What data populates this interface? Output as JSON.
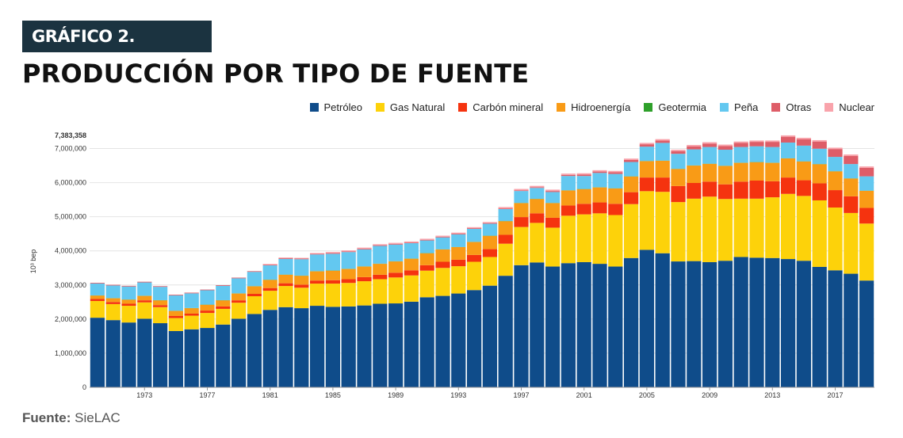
{
  "header": {
    "badge": "GRÁFICO 2.",
    "title": "PRODUCCIÓN POR TIPO DE FUENTE"
  },
  "source": {
    "label": "Fuente:",
    "value": "SieLAC"
  },
  "colors": {
    "Petróleo": "#0f4c8a",
    "Gas Natural": "#fdd20a",
    "Carbón mineral": "#f5330f",
    "Hidroenergía": "#f99b16",
    "Geotermia": "#2ea02a",
    "Peña": "#63c8f0",
    "Otras": "#de5d68",
    "Nuclear": "#f9a3ab"
  },
  "chart_data": {
    "type": "bar",
    "stacked": true,
    "ylabel": "10³ bep",
    "ylim": [
      0,
      7383358
    ],
    "y_max_label": "7,383,358",
    "y_ticks": [
      0,
      1000000,
      2000000,
      3000000,
      4000000,
      5000000,
      6000000,
      7000000
    ],
    "y_tick_labels": [
      "0",
      "1,000,000",
      "2,000,000",
      "3,000,000",
      "4,000,000",
      "5,000,000",
      "6,000,000",
      "7,000,000"
    ],
    "grid": true,
    "legend_position": "top-right",
    "x_tick_labels": [
      "1973",
      "1977",
      "1981",
      "1985",
      "1989",
      "1993",
      "1997",
      "2001",
      "2005",
      "2009",
      "2013",
      "2017"
    ],
    "categories": [
      "1970",
      "1971",
      "1972",
      "1973",
      "1974",
      "1975",
      "1976",
      "1977",
      "1978",
      "1979",
      "1980",
      "1981",
      "1982",
      "1983",
      "1984",
      "1985",
      "1986",
      "1987",
      "1988",
      "1989",
      "1990",
      "1991",
      "1992",
      "1993",
      "1994",
      "1995",
      "1996",
      "1997",
      "1998",
      "1999",
      "2000",
      "2001",
      "2002",
      "2003",
      "2004",
      "2005",
      "2006",
      "2007",
      "2008",
      "2009",
      "2010",
      "2011",
      "2012",
      "2013",
      "2014",
      "2015",
      "2016",
      "2017",
      "2018",
      "2019"
    ],
    "series": [
      {
        "name": "Petróleo",
        "values": [
          2040000,
          1970000,
          1900000,
          2010000,
          1880000,
          1650000,
          1700000,
          1740000,
          1840000,
          2010000,
          2150000,
          2270000,
          2350000,
          2320000,
          2390000,
          2360000,
          2370000,
          2400000,
          2450000,
          2460000,
          2510000,
          2640000,
          2680000,
          2750000,
          2850000,
          2980000,
          3270000,
          3580000,
          3660000,
          3540000,
          3640000,
          3670000,
          3620000,
          3540000,
          3790000,
          4030000,
          3930000,
          3690000,
          3700000,
          3670000,
          3710000,
          3820000,
          3800000,
          3790000,
          3760000,
          3710000,
          3530000,
          3430000,
          3330000,
          3130000
        ]
      },
      {
        "name": "Gas Natural",
        "values": [
          490000,
          470000,
          490000,
          480000,
          470000,
          380000,
          400000,
          440000,
          460000,
          470000,
          520000,
          560000,
          620000,
          600000,
          650000,
          680000,
          690000,
          710000,
          720000,
          760000,
          770000,
          780000,
          820000,
          800000,
          830000,
          840000,
          940000,
          1120000,
          1160000,
          1140000,
          1390000,
          1400000,
          1480000,
          1510000,
          1580000,
          1720000,
          1800000,
          1740000,
          1830000,
          1920000,
          1810000,
          1710000,
          1730000,
          1780000,
          1910000,
          1900000,
          1950000,
          1840000,
          1780000,
          1670000
        ]
      },
      {
        "name": "Carbón mineral",
        "values": [
          60000,
          60000,
          60000,
          60000,
          60000,
          60000,
          60000,
          70000,
          70000,
          70000,
          70000,
          80000,
          80000,
          90000,
          90000,
          100000,
          110000,
          120000,
          130000,
          140000,
          150000,
          160000,
          180000,
          190000,
          200000,
          230000,
          260000,
          290000,
          280000,
          290000,
          300000,
          310000,
          320000,
          330000,
          350000,
          400000,
          420000,
          470000,
          460000,
          440000,
          430000,
          500000,
          530000,
          470000,
          480000,
          460000,
          500000,
          510000,
          490000,
          460000
        ]
      },
      {
        "name": "Hidroenergía",
        "values": [
          100000,
          110000,
          120000,
          130000,
          140000,
          150000,
          160000,
          170000,
          180000,
          200000,
          220000,
          240000,
          250000,
          260000,
          270000,
          280000,
          300000,
          310000,
          320000,
          330000,
          340000,
          350000,
          360000,
          370000,
          380000,
          390000,
          400000,
          410000,
          420000,
          430000,
          440000,
          430000,
          440000,
          450000,
          460000,
          480000,
          490000,
          500000,
          510000,
          520000,
          540000,
          550000,
          540000,
          540000,
          560000,
          550000,
          560000,
          550000,
          520000,
          500000
        ]
      },
      {
        "name": "Geotermia",
        "values": [
          5000,
          5000,
          5000,
          5000,
          5000,
          5000,
          5000,
          5000,
          5000,
          5000,
          5000,
          5000,
          5000,
          5000,
          5000,
          5000,
          5000,
          5000,
          5000,
          5000,
          5000,
          5000,
          5000,
          5000,
          5000,
          5000,
          5000,
          5000,
          5000,
          5000,
          5000,
          5000,
          5000,
          5000,
          5000,
          5000,
          5000,
          5000,
          5000,
          5000,
          5000,
          5000,
          5000,
          5000,
          5000,
          5000,
          5000,
          5000,
          5000,
          5000
        ]
      },
      {
        "name": "Peña",
        "values": [
          350000,
          370000,
          380000,
          390000,
          390000,
          450000,
          430000,
          420000,
          420000,
          440000,
          420000,
          420000,
          460000,
          480000,
          490000,
          490000,
          490000,
          500000,
          520000,
          490000,
          450000,
          370000,
          350000,
          370000,
          380000,
          350000,
          350000,
          350000,
          320000,
          320000,
          420000,
          380000,
          420000,
          420000,
          420000,
          420000,
          520000,
          440000,
          470000,
          490000,
          470000,
          460000,
          460000,
          460000,
          460000,
          460000,
          450000,
          420000,
          420000,
          420000
        ]
      },
      {
        "name": "Otras",
        "values": [
          20000,
          20000,
          20000,
          20000,
          20000,
          20000,
          20000,
          20000,
          20000,
          20000,
          20000,
          20000,
          20000,
          20000,
          20000,
          20000,
          20000,
          20000,
          20000,
          20000,
          20000,
          20000,
          20000,
          20000,
          20000,
          20000,
          20000,
          20000,
          20000,
          30000,
          30000,
          40000,
          40000,
          50000,
          60000,
          70000,
          70000,
          80000,
          90000,
          100000,
          110000,
          120000,
          130000,
          150000,
          170000,
          190000,
          210000,
          230000,
          240000,
          250000
        ]
      },
      {
        "name": "Nuclear",
        "values": [
          0,
          0,
          0,
          0,
          0,
          0,
          0,
          0,
          0,
          0,
          0,
          20000,
          20000,
          20000,
          20000,
          30000,
          30000,
          30000,
          30000,
          30000,
          30000,
          30000,
          30000,
          30000,
          30000,
          30000,
          40000,
          40000,
          40000,
          40000,
          40000,
          40000,
          40000,
          40000,
          40000,
          40000,
          40000,
          40000,
          40000,
          40000,
          40000,
          40000,
          40000,
          40000,
          40000,
          40000,
          40000,
          40000,
          40000,
          40000
        ]
      }
    ]
  }
}
